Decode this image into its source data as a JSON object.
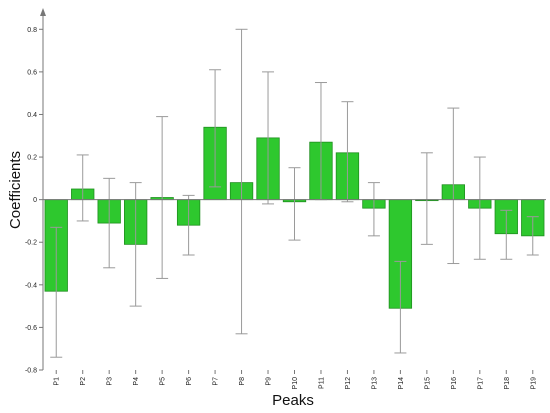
{
  "chart_data": {
    "type": "bar",
    "title": "",
    "xlabel": "Peaks",
    "ylabel": "Coefficients",
    "ylim": [
      -0.8,
      0.9
    ],
    "yticks": [
      -0.8,
      -0.6,
      -0.4,
      -0.2,
      0,
      0.2,
      0.4,
      0.6,
      0.8
    ],
    "ytick_labels": [
      "-0.8",
      "-0.6",
      "-0.4",
      "-0.2",
      "0",
      "0.2",
      "0.4",
      "0.6",
      "0.8"
    ],
    "grid": false,
    "bar_color": "#2ec82e",
    "categories": [
      "P1",
      "P2",
      "P3",
      "P4",
      "P5",
      "P6",
      "P7",
      "P8",
      "P9",
      "P10",
      "P11",
      "P12",
      "P13",
      "P14",
      "P15",
      "P16",
      "P17",
      "P18",
      "P19"
    ],
    "values": [
      -0.43,
      0.05,
      -0.11,
      -0.21,
      0.01,
      -0.12,
      0.34,
      0.08,
      0.29,
      -0.01,
      0.27,
      0.22,
      -0.04,
      -0.51,
      0.0,
      0.07,
      -0.04,
      -0.16,
      -0.17
    ],
    "error_low": [
      -0.74,
      -0.1,
      -0.32,
      -0.5,
      -0.37,
      -0.26,
      0.06,
      -0.63,
      -0.02,
      -0.19,
      0.0,
      -0.01,
      -0.17,
      -0.72,
      -0.21,
      -0.3,
      -0.28,
      -0.28,
      -0.26
    ],
    "error_high": [
      -0.13,
      0.21,
      0.1,
      0.08,
      0.39,
      0.02,
      0.61,
      0.8,
      0.6,
      0.15,
      0.55,
      0.46,
      0.08,
      -0.29,
      0.22,
      0.43,
      0.2,
      -0.05,
      -0.08
    ]
  }
}
